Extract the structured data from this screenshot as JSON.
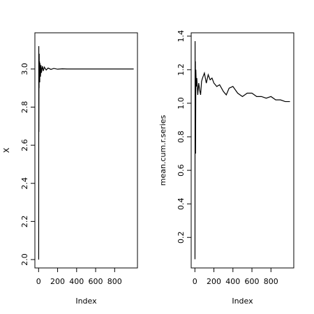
{
  "chart_data": [
    {
      "type": "line",
      "xlabel": "Index",
      "ylabel": "X",
      "color": "#000000",
      "x": [
        1,
        2,
        3,
        4,
        5,
        6,
        8,
        10,
        12,
        15,
        20,
        25,
        30,
        40,
        50,
        60,
        80,
        100,
        130,
        160,
        200,
        250,
        300,
        400,
        500,
        600,
        700,
        800,
        900,
        1000
      ],
      "values": [
        2.0,
        3.12,
        2.67,
        3.05,
        2.9,
        3.08,
        2.95,
        3.04,
        2.93,
        3.03,
        2.96,
        3.02,
        2.98,
        3.015,
        2.99,
        3.01,
        2.995,
        3.005,
        2.998,
        3.003,
        2.999,
        3.001,
        3.0,
        3.0,
        3.0,
        3.0,
        3.0,
        3.0,
        3.0,
        3.0
      ],
      "xlim": [
        -38.96,
        1039.96
      ],
      "xticks": [
        0,
        200,
        400,
        600,
        800
      ],
      "ylim": [
        1.956,
        3.19
      ],
      "yticks": [
        {
          "value": 2,
          "label": "2.0"
        },
        2.2,
        2.4,
        2.6,
        2.8,
        {
          "value": 3,
          "label": "3.0"
        }
      ]
    },
    {
      "type": "line",
      "xlabel": "Index",
      "ylabel": "mean.cum.r.series",
      "color": "#000000",
      "x": [
        1,
        2,
        3,
        5,
        7,
        10,
        15,
        20,
        30,
        40,
        50,
        60,
        70,
        80,
        100,
        120,
        140,
        160,
        180,
        200,
        230,
        260,
        300,
        330,
        360,
        400,
        450,
        500,
        550,
        600,
        650,
        700,
        750,
        800,
        850,
        900,
        950,
        1000
      ],
      "values": [
        0.07,
        1.37,
        0.87,
        1.25,
        0.7,
        1.2,
        1.1,
        1.15,
        1.05,
        1.12,
        1.08,
        1.05,
        1.13,
        1.15,
        1.18,
        1.12,
        1.17,
        1.14,
        1.15,
        1.12,
        1.1,
        1.11,
        1.07,
        1.05,
        1.09,
        1.1,
        1.06,
        1.04,
        1.06,
        1.06,
        1.04,
        1.04,
        1.03,
        1.04,
        1.02,
        1.02,
        1.01,
        1.01
      ],
      "xlim": [
        -38.96,
        1039.96
      ],
      "xticks": [
        0,
        200,
        400,
        600,
        800
      ],
      "ylim": [
        0.018,
        1.42
      ],
      "yticks": [
        0.2,
        0.4,
        0.6,
        0.8,
        {
          "value": 1,
          "label": "1.0"
        },
        1.2,
        1.4
      ]
    }
  ]
}
